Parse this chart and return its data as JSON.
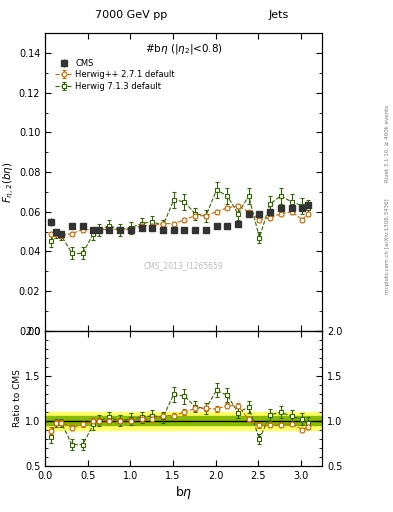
{
  "title_left": "7000 GeV pp",
  "title_right": "Jets",
  "plot_title": "#bη (|η_2|<0.8)",
  "xlabel": "bη",
  "ylabel_main": "F_{η,2}(bη)",
  "ylabel_ratio": "Ratio to CMS",
  "watermark": "CMS_2013_I1265659",
  "right_label": "Rivet 3.1.10, ≥ 400k events",
  "right_label2": "mcplots.cern.ch [arXiv:1306.3436]",
  "cms_x": [
    0.063,
    0.126,
    0.189,
    0.314,
    0.44,
    0.565,
    0.628,
    0.754,
    0.88,
    1.005,
    1.131,
    1.257,
    1.382,
    1.508,
    1.634,
    1.759,
    1.885,
    2.01,
    2.136,
    2.262,
    2.387,
    2.513,
    2.638,
    2.764,
    2.89,
    3.016,
    3.079
  ],
  "cms_y": [
    0.055,
    0.05,
    0.049,
    0.053,
    0.053,
    0.051,
    0.051,
    0.051,
    0.051,
    0.051,
    0.052,
    0.052,
    0.051,
    0.051,
    0.051,
    0.051,
    0.051,
    0.053,
    0.053,
    0.054,
    0.059,
    0.059,
    0.06,
    0.062,
    0.062,
    0.062,
    0.0635
  ],
  "cms_yerr": [
    0.002,
    0.001,
    0.001,
    0.001,
    0.001,
    0.001,
    0.001,
    0.001,
    0.001,
    0.001,
    0.001,
    0.001,
    0.001,
    0.001,
    0.001,
    0.001,
    0.001,
    0.001,
    0.001,
    0.001,
    0.001,
    0.001,
    0.001,
    0.001,
    0.001,
    0.001,
    0.001
  ],
  "hw271_x": [
    0.063,
    0.126,
    0.189,
    0.314,
    0.44,
    0.565,
    0.628,
    0.754,
    0.88,
    1.005,
    1.131,
    1.257,
    1.382,
    1.508,
    1.634,
    1.759,
    1.885,
    2.01,
    2.136,
    2.262,
    2.387,
    2.513,
    2.638,
    2.764,
    2.89,
    3.016,
    3.079
  ],
  "hw271_y": [
    0.049,
    0.049,
    0.048,
    0.049,
    0.051,
    0.051,
    0.051,
    0.051,
    0.051,
    0.051,
    0.053,
    0.053,
    0.054,
    0.054,
    0.056,
    0.058,
    0.058,
    0.06,
    0.062,
    0.063,
    0.06,
    0.056,
    0.057,
    0.059,
    0.06,
    0.056,
    0.059
  ],
  "hw271_yerr": [
    0.001,
    0.001,
    0.001,
    0.001,
    0.001,
    0.001,
    0.001,
    0.001,
    0.001,
    0.001,
    0.001,
    0.001,
    0.001,
    0.001,
    0.001,
    0.001,
    0.001,
    0.001,
    0.001,
    0.001,
    0.001,
    0.001,
    0.001,
    0.001,
    0.001,
    0.001,
    0.001
  ],
  "hw713_x": [
    0.063,
    0.126,
    0.189,
    0.314,
    0.44,
    0.565,
    0.628,
    0.754,
    0.88,
    1.005,
    1.131,
    1.257,
    1.382,
    1.508,
    1.634,
    1.759,
    1.885,
    2.01,
    2.136,
    2.262,
    2.387,
    2.513,
    2.638,
    2.764,
    2.89,
    3.016,
    3.079
  ],
  "hw713_y": [
    0.045,
    0.049,
    0.048,
    0.039,
    0.039,
    0.049,
    0.051,
    0.053,
    0.051,
    0.052,
    0.054,
    0.055,
    0.053,
    0.066,
    0.065,
    0.059,
    0.058,
    0.071,
    0.068,
    0.059,
    0.068,
    0.047,
    0.064,
    0.068,
    0.065,
    0.063,
    0.062
  ],
  "hw713_yerr": [
    0.003,
    0.002,
    0.002,
    0.003,
    0.003,
    0.003,
    0.003,
    0.003,
    0.003,
    0.003,
    0.003,
    0.003,
    0.003,
    0.004,
    0.004,
    0.003,
    0.003,
    0.004,
    0.004,
    0.003,
    0.004,
    0.003,
    0.004,
    0.004,
    0.004,
    0.004,
    0.004
  ],
  "cms_color": "#333333",
  "hw271_color": "#cc6600",
  "hw713_color": "#336600",
  "band_yellow": "#ffff66",
  "band_green": "#88bb00",
  "ylim_main": [
    0.0,
    0.15
  ],
  "ylim_ratio": [
    0.5,
    2.0
  ],
  "xlim": [
    0.0,
    3.25
  ],
  "ratio_band_inner": 0.05,
  "ratio_band_outer": 0.1
}
